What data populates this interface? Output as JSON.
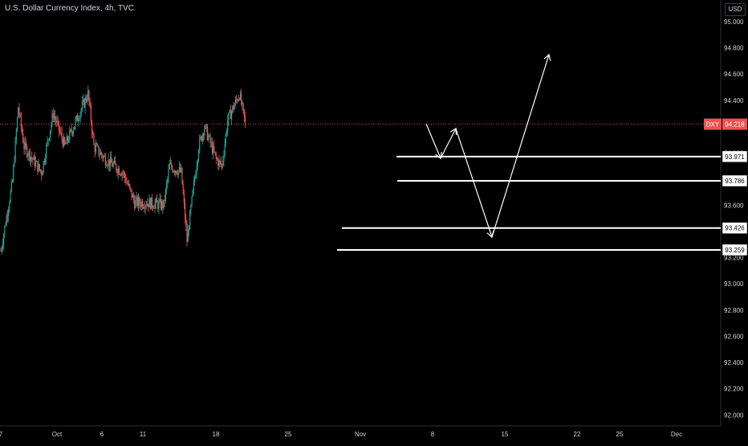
{
  "header": {
    "title": "U.S. Dollar Currency Index, 4h, TVC",
    "currency": "USD"
  },
  "colors": {
    "background": "#000000",
    "up": "#26a69a",
    "down": "#ef5350",
    "annotation": "#ffffff",
    "price_line": "#ef5350"
  },
  "chart_data": {
    "type": "candlestick",
    "title": "U.S. Dollar Currency Index, 4h, TVC",
    "symbol": "DXY",
    "last_price": 94.218,
    "y_axis": {
      "ticks": [
        "95.000",
        "94.800",
        "94.600",
        "94.400",
        "94.000",
        "93.600",
        "93.200",
        "93.000",
        "92.800",
        "92.600",
        "92.400",
        "92.200",
        "92.000"
      ],
      "range": [
        91.9,
        95.1
      ]
    },
    "x_axis": {
      "ticks": [
        "7",
        "Oct",
        "6",
        "11",
        "18",
        "25",
        "Nov",
        "8",
        "15",
        "22",
        "25",
        "Dec"
      ]
    },
    "trend_waypoints": [
      {
        "date": "Sep 27",
        "close": 93.25
      },
      {
        "date": "Sep 29",
        "close": 93.78
      },
      {
        "date": "Sep 30",
        "close": 94.35
      },
      {
        "date": "Oct 1",
        "close": 94.05
      },
      {
        "date": "Oct 4",
        "close": 93.85
      },
      {
        "date": "Oct 6",
        "close": 94.3
      },
      {
        "date": "Oct 8",
        "close": 94.05
      },
      {
        "date": "Oct 11",
        "close": 94.35
      },
      {
        "date": "Oct 12",
        "close": 94.45
      },
      {
        "date": "Oct 13",
        "close": 94.05
      },
      {
        "date": "Oct 15",
        "close": 93.95
      },
      {
        "date": "Oct 18",
        "close": 93.85
      },
      {
        "date": "Oct 20",
        "close": 93.62
      },
      {
        "date": "Oct 22",
        "close": 93.62
      },
      {
        "date": "Oct 25",
        "close": 93.6
      },
      {
        "date": "Oct 26",
        "close": 93.9
      },
      {
        "date": "Oct 28",
        "close": 93.85
      },
      {
        "date": "Oct 29",
        "close": 93.33
      },
      {
        "date": "Oct 31",
        "close": 94.05
      },
      {
        "date": "Nov 1",
        "close": 94.2
      },
      {
        "date": "Nov 3",
        "close": 93.95
      },
      {
        "date": "Nov 4",
        "close": 93.9
      },
      {
        "date": "Nov 5",
        "close": 94.25
      },
      {
        "date": "Nov 7",
        "close": 94.45
      },
      {
        "date": "Nov 8",
        "close": 94.22
      }
    ],
    "levels": [
      {
        "label": "93.971",
        "value": 93.971
      },
      {
        "label": "93.786",
        "value": 93.786
      },
      {
        "label": "93.426",
        "value": 93.426
      },
      {
        "label": "93.259",
        "value": 93.259
      }
    ],
    "projection": [
      {
        "date": "Nov 8",
        "value": 94.22
      },
      {
        "date": "Nov 9",
        "value": 93.97
      },
      {
        "date": "Nov 10",
        "value": 94.18
      },
      {
        "date": "Nov 14",
        "value": 93.26
      },
      {
        "date": "Nov 18",
        "value": 94.74
      }
    ]
  }
}
